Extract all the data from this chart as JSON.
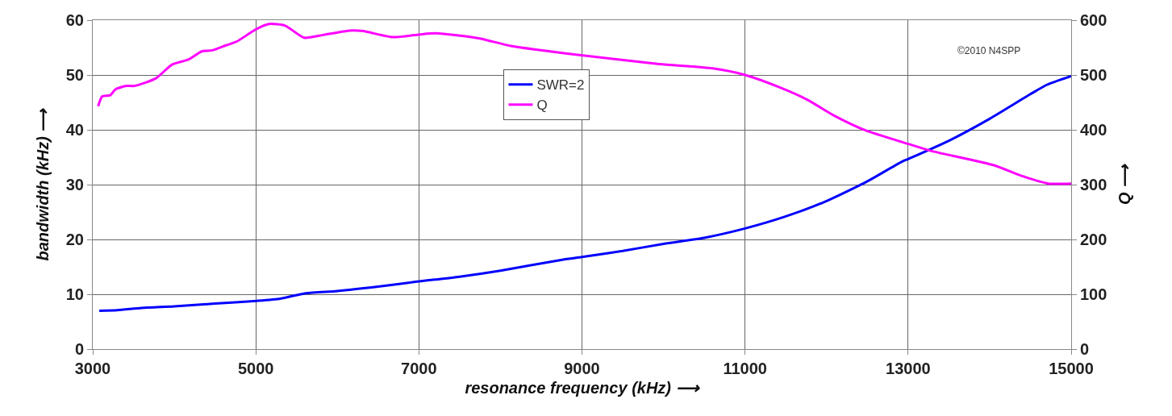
{
  "chart_data": {
    "type": "line",
    "xlabel": "resonance frequency (kHz) ⟶",
    "ylabel": "bandwidth (kHz) ⟶",
    "y2label": "Q ⟶",
    "xlim": [
      3000,
      15000
    ],
    "xticks": [
      3000,
      5000,
      7000,
      9000,
      11000,
      13000,
      15000
    ],
    "ylim": [
      0,
      60
    ],
    "yticks": [
      0,
      10,
      20,
      30,
      40,
      50,
      60
    ],
    "y2lim": [
      0,
      600
    ],
    "y2ticks": [
      0,
      100,
      200,
      300,
      400,
      500,
      600
    ],
    "grid": true,
    "legend": "top center",
    "marker": "none",
    "line_style": "solid",
    "annotations": [
      "©2010 N4SPP"
    ],
    "series": [
      {
        "name": "SWR=2",
        "color": "#0000ff",
        "axis": "y",
        "x": [
          3080,
          3300,
          3600,
          4000,
          4500,
          5010,
          5300,
          5611,
          6000,
          6500,
          6976,
          7500,
          8000,
          8757,
          9000,
          9500,
          10000,
          10500,
          11000,
          11500,
          12000,
          12313,
          12500,
          12928,
          13006,
          13500,
          14000,
          14500,
          14700,
          15000
        ],
        "values": [
          7.0,
          7.1,
          7.5,
          7.8,
          8.3,
          8.8,
          9.2,
          10.2,
          10.6,
          11.4,
          12.3,
          13.2,
          14.3,
          16.3,
          16.8,
          17.9,
          19.2,
          20.3,
          22.0,
          24.2,
          27.0,
          29.2,
          30.6,
          34.2,
          34.7,
          38.0,
          42.0,
          46.5,
          48.2,
          49.8
        ]
      },
      {
        "name": "Q",
        "color": "#ff00ff",
        "axis": "y2",
        "x": [
          3066,
          3116,
          3215,
          3280,
          3413,
          3512,
          3775,
          3973,
          4171,
          4337,
          4468,
          4634,
          4766,
          4997,
          5162,
          5360,
          5591,
          5822,
          6152,
          6317,
          6680,
          7010,
          7208,
          7733,
          8129,
          8990,
          9948,
          10604,
          11000,
          11432,
          11762,
          12092,
          12477,
          13006,
          13270,
          14060,
          14392,
          14720,
          15000
        ],
        "values": [
          443,
          461,
          463,
          474,
          480,
          480,
          494,
          519,
          528,
          543,
          545,
          554,
          561,
          583,
          593,
          590,
          568,
          573,
          581,
          580,
          569,
          574,
          576,
          567,
          553,
          536,
          520,
          512,
          500,
          477,
          455,
          426,
          399,
          374,
          362,
          335,
          316,
          302,
          302
        ]
      }
    ]
  }
}
